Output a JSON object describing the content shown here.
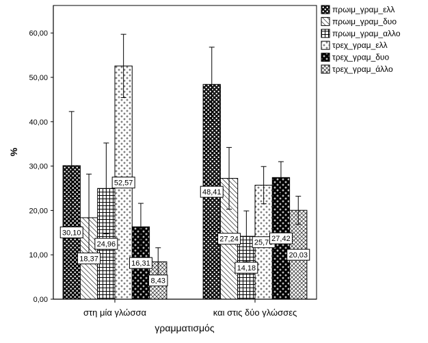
{
  "chart_data": {
    "type": "bar",
    "categories": [
      "στη μία γλώσσα",
      "και στις δύο γλώσσες"
    ],
    "series": [
      {
        "name": "πρωιμ_γραμ_ελλ",
        "values": [
          30.1,
          48.41
        ],
        "labels": [
          "30,10",
          "48,41"
        ],
        "error_high": [
          42.3,
          56.8
        ]
      },
      {
        "name": "πρωιμ_γραμ_δυο",
        "values": [
          18.37,
          27.24
        ],
        "labels": [
          "18,37",
          "27,24"
        ],
        "error_high": [
          28.2,
          34.2
        ]
      },
      {
        "name": "πρωιμ_γραμ_αλλο",
        "values": [
          24.96,
          14.18
        ],
        "labels": [
          "24,96",
          "14,18"
        ],
        "error_high": [
          35.2,
          19.9
        ]
      },
      {
        "name": "τρεχ_γραμ_ελλ",
        "values": [
          52.57,
          25.7
        ],
        "labels": [
          "52,57",
          "25,70"
        ],
        "error_high": [
          59.7,
          29.9
        ]
      },
      {
        "name": "τρεχ_γραμ_δυο",
        "values": [
          16.31,
          27.42
        ],
        "labels": [
          "16,31",
          "27,42"
        ],
        "error_high": [
          21.6,
          31.0
        ]
      },
      {
        "name": "τρεχ_γραμ_άλλο",
        "values": [
          8.43,
          20.03
        ],
        "labels": [
          "8,43",
          "20,03"
        ],
        "error_high": [
          11.6,
          23.2
        ]
      }
    ],
    "xlabel": "γραμματισμός",
    "ylabel": "%",
    "yticks": [
      0,
      10,
      20,
      30,
      40,
      50,
      60
    ],
    "ytick_labels": [
      "0,00",
      "10,00",
      "20,00",
      "30,00",
      "40,00",
      "50,00",
      "60,00"
    ],
    "ylim": [
      0,
      66.2
    ],
    "legend": "right",
    "grid": false,
    "colors": {
      "ink": "#000000",
      "background": "#ffffff"
    }
  }
}
